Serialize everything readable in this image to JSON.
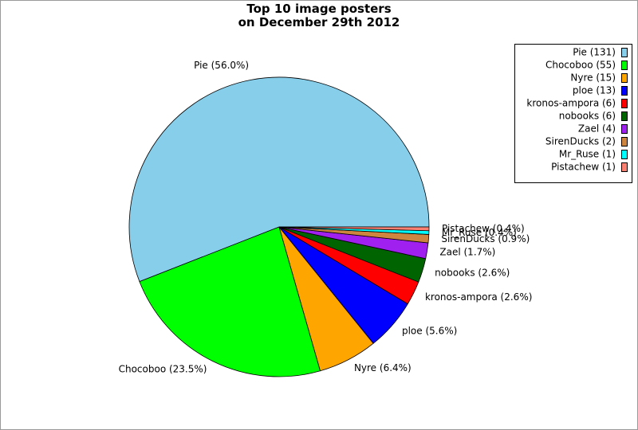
{
  "chart_data": {
    "type": "pie",
    "title": "Top 10 image posters\non December 29th 2012",
    "values": [
      56.0,
      23.5,
      6.4,
      5.6,
      2.6,
      2.6,
      1.7,
      0.9,
      0.4,
      0.4
    ],
    "value_labels": [
      "Pie (56.0%)",
      "Chocoboo (23.5%)",
      "Nyre (6.4%)",
      "ploe (5.6%)",
      "kronos-ampora (2.6%)",
      "nobooks (2.6%)",
      "Zael (1.7%)",
      "SirenDucks (0.9%)",
      "Mr_Ruse (0.4%)",
      "Pistachew (0.4%)"
    ],
    "legend_labels": [
      "Pie (131)",
      "Chocoboo (55)",
      "Nyre (15)",
      "ploe (13)",
      "kronos-ampora (6)",
      "nobooks (6)",
      "Zael (4)",
      "SirenDucks (2)",
      "Mr_Ruse (1)",
      "Pistachew (1)"
    ],
    "colors": [
      "#87ceeb",
      "#00ff00",
      "#ffa500",
      "#0000ff",
      "#ff0000",
      "#006400",
      "#a020f0",
      "#cd853f",
      "#00ffff",
      "#fa8072"
    ],
    "legend": "upper right"
  }
}
